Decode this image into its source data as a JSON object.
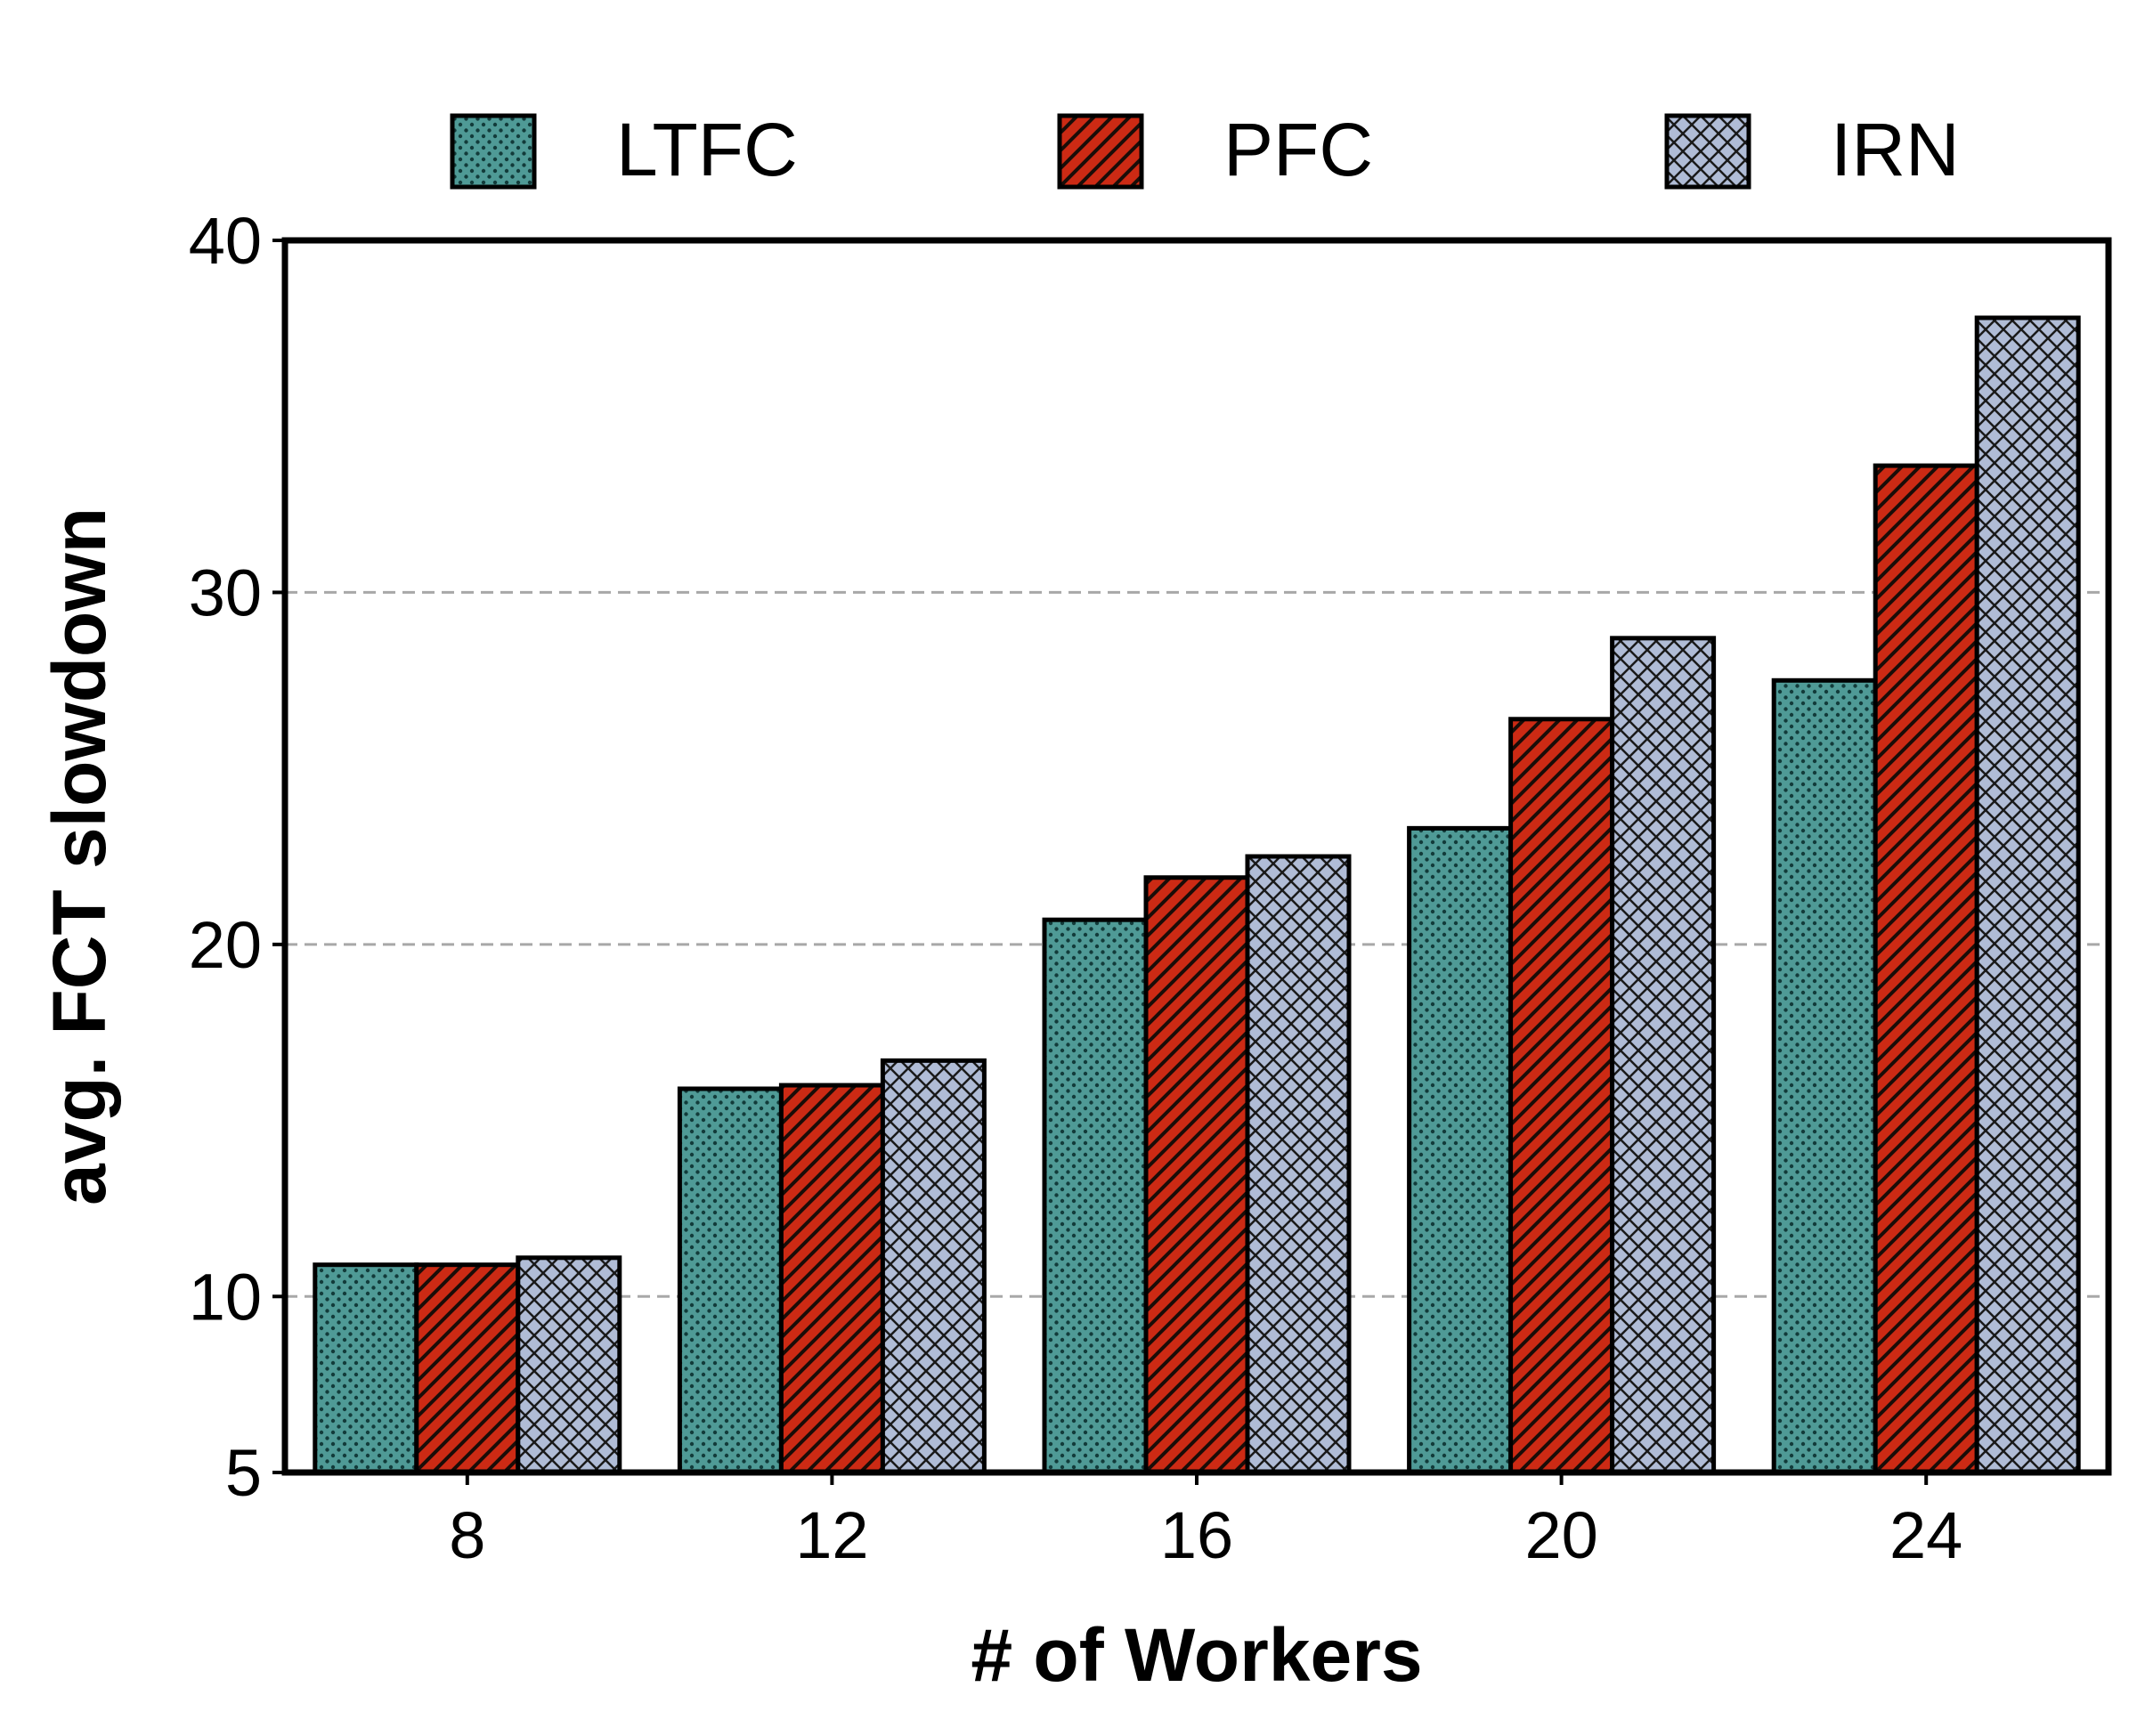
{
  "chart_data": {
    "type": "bar",
    "categories": [
      "8",
      "12",
      "16",
      "20",
      "24"
    ],
    "series": [
      {
        "name": "LTFC",
        "values": [
          10.9,
          15.9,
          20.7,
          23.3,
          27.5
        ],
        "color": "#4f9a96",
        "pattern": "dots"
      },
      {
        "name": "PFC",
        "values": [
          10.9,
          16.0,
          21.9,
          26.4,
          33.6
        ],
        "color": "#cc2a14",
        "pattern": "diagonal-hatch"
      },
      {
        "name": "IRN",
        "values": [
          11.1,
          16.7,
          22.5,
          28.7,
          37.8
        ],
        "color": "#b0bcd6",
        "pattern": "crosshatch"
      }
    ],
    "xlabel": "# of Workers",
    "ylabel": "avg. FCT slowdown",
    "yticks": [
      5,
      10,
      20,
      30,
      40
    ],
    "ylim": [
      5,
      40
    ],
    "grid": "horizontal dashed at 10, 20, 30",
    "legend": "top, horizontal"
  }
}
